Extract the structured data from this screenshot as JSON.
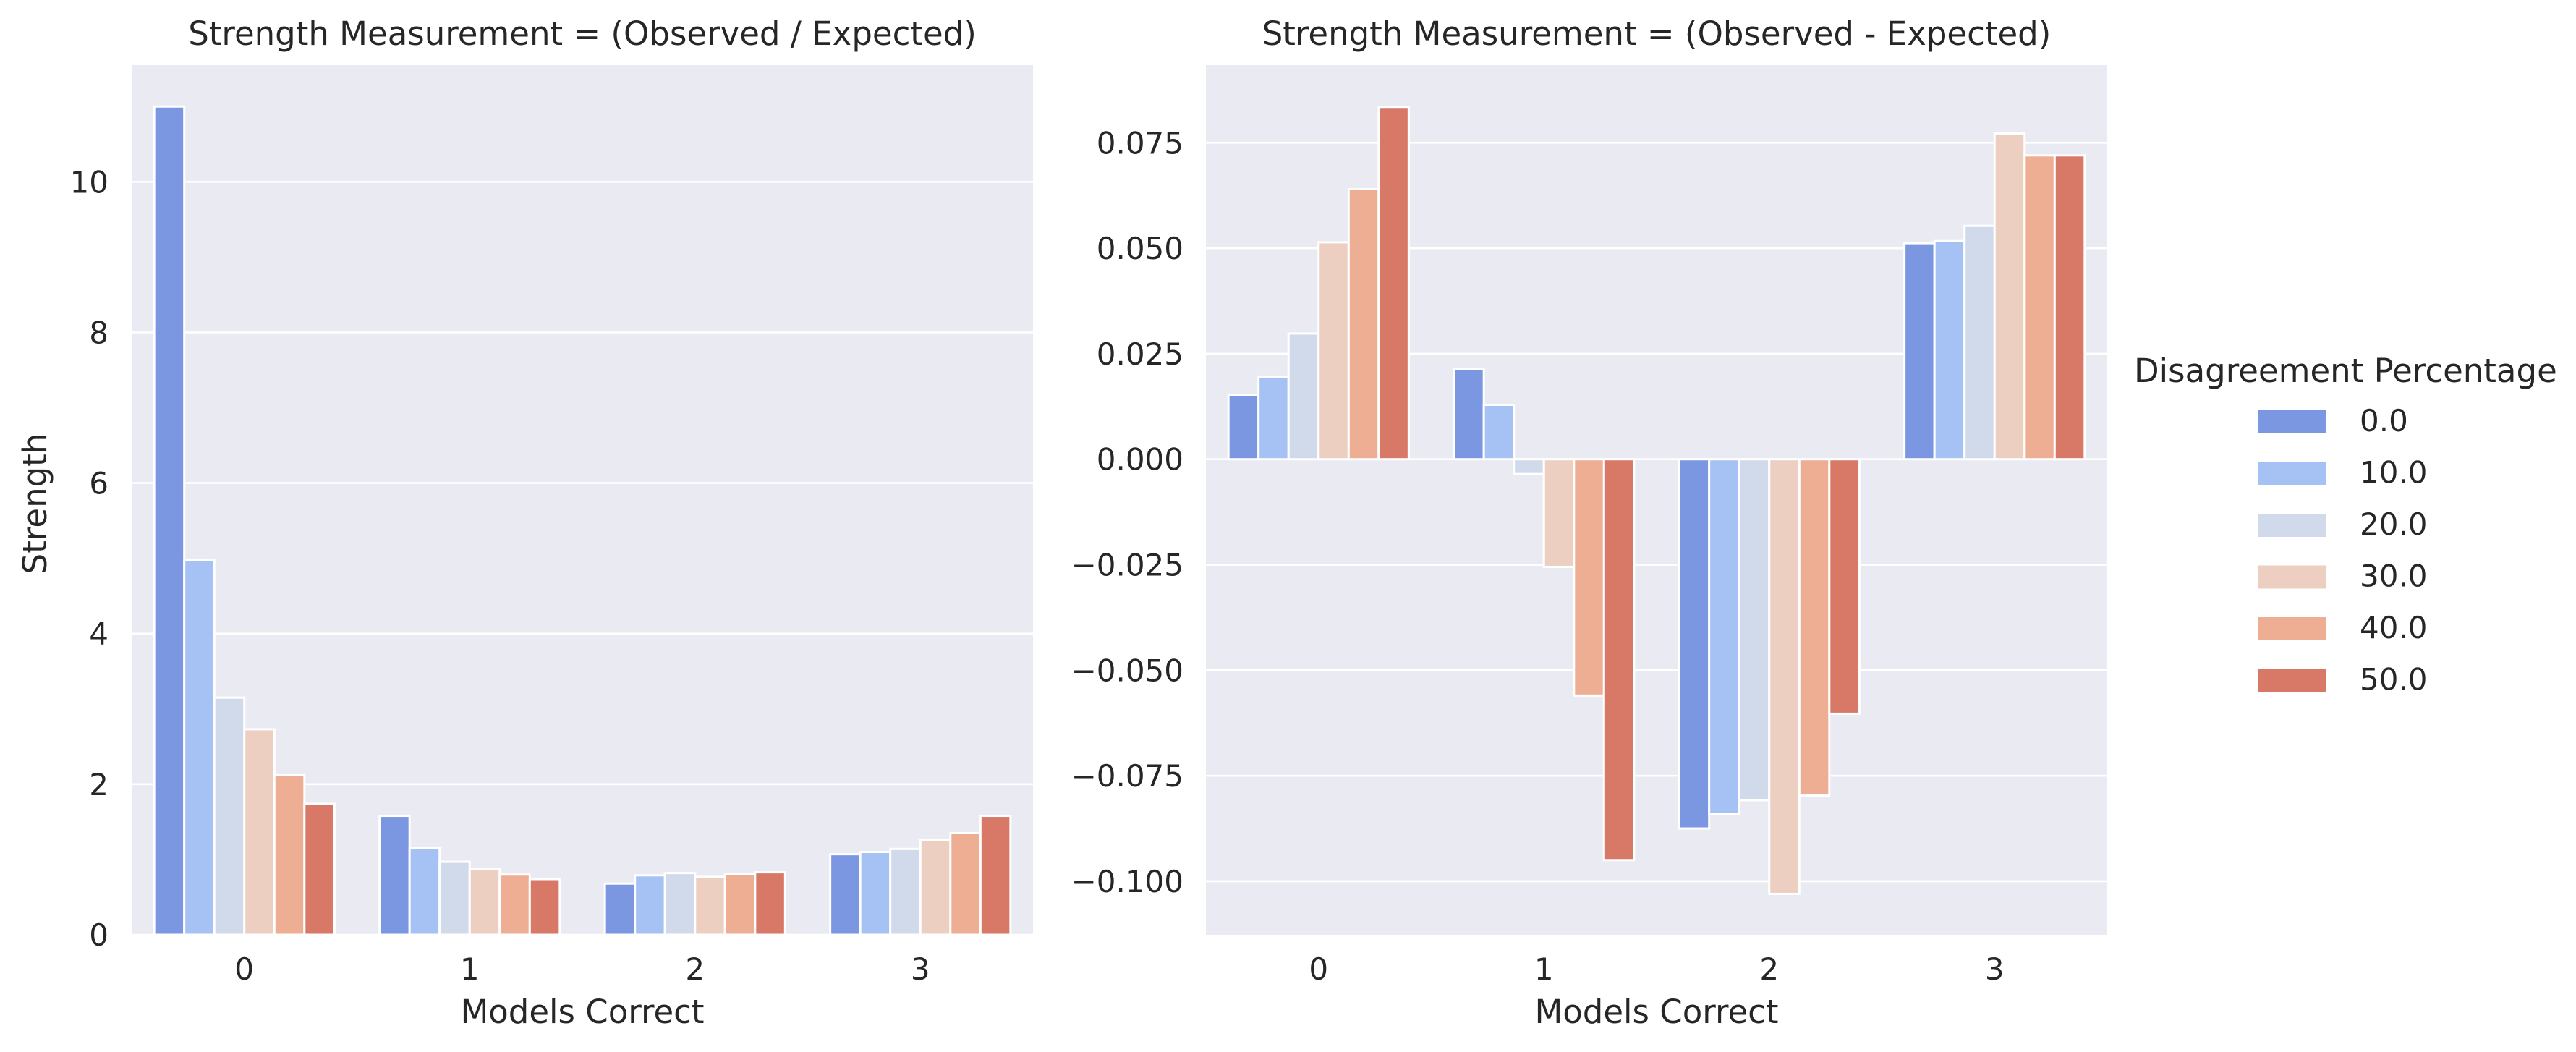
{
  "chart_data": [
    {
      "type": "bar",
      "title": "Strength Measurement = (Observed / Expected)",
      "xlabel": "Models Correct",
      "ylabel": "Strength",
      "categories": [
        "0",
        "1",
        "2",
        "3"
      ],
      "ylim": [
        0,
        11.55
      ],
      "yticks": [
        0,
        2,
        4,
        6,
        8,
        10
      ],
      "ytick_labels": [
        "0",
        "2",
        "4",
        "6",
        "8",
        "10"
      ],
      "series": [
        {
          "name": "0.0",
          "values": [
            11.0,
            1.58,
            0.68,
            1.07
          ]
        },
        {
          "name": "10.0",
          "values": [
            4.98,
            1.15,
            0.79,
            1.1
          ]
        },
        {
          "name": "20.0",
          "values": [
            3.15,
            0.97,
            0.82,
            1.14
          ]
        },
        {
          "name": "30.0",
          "values": [
            2.73,
            0.87,
            0.77,
            1.26
          ]
        },
        {
          "name": "40.0",
          "values": [
            2.12,
            0.8,
            0.81,
            1.35
          ]
        },
        {
          "name": "50.0",
          "values": [
            1.74,
            0.74,
            0.83,
            1.58
          ]
        }
      ]
    },
    {
      "type": "bar",
      "title": "Strength Measurement = (Observed - Expected)",
      "xlabel": "Models Correct",
      "ylabel": "",
      "categories": [
        "0",
        "1",
        "2",
        "3"
      ],
      "ylim": [
        -0.1127,
        0.0934
      ],
      "yticks": [
        -0.1,
        -0.075,
        -0.05,
        -0.025,
        0.0,
        0.025,
        0.05,
        0.075
      ],
      "ytick_labels": [
        "−0.100",
        "−0.075",
        "−0.050",
        "−0.025",
        "0.000",
        "0.025",
        "0.050",
        "0.075"
      ],
      "series": [
        {
          "name": "0.0",
          "values": [
            0.0153,
            0.0214,
            -0.0875,
            0.0512
          ]
        },
        {
          "name": "10.0",
          "values": [
            0.0196,
            0.0129,
            -0.084,
            0.0517
          ]
        },
        {
          "name": "20.0",
          "values": [
            0.0298,
            -0.0035,
            -0.0808,
            0.0553
          ]
        },
        {
          "name": "30.0",
          "values": [
            0.0514,
            -0.0255,
            -0.103,
            0.0772
          ]
        },
        {
          "name": "40.0",
          "values": [
            0.064,
            -0.056,
            -0.0797,
            0.072
          ]
        },
        {
          "name": "50.0",
          "values": [
            0.0835,
            -0.095,
            -0.0603,
            0.072
          ]
        }
      ]
    }
  ],
  "legend": {
    "title": "Disagreement Percentage",
    "entries": [
      "0.0",
      "10.0",
      "20.0",
      "30.0",
      "40.0",
      "50.0"
    ],
    "colors": [
      "#7b97e1",
      "#a6c1f3",
      "#d0daeb",
      "#eccfc1",
      "#eeae93",
      "#d87967"
    ]
  },
  "style": {
    "plot_background": "#eaeaf2",
    "grid_color": "#ffffff",
    "text_color": "#262626",
    "bar_edge_color": "#ffffff"
  }
}
